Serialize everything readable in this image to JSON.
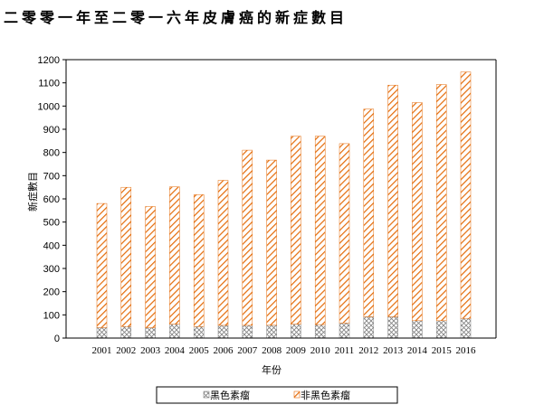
{
  "page": {
    "title": "二零零一年至二零一六年皮膚癌的新症數目"
  },
  "chart_data": {
    "type": "bar",
    "stacked": true,
    "title": "二零零一年至二零一六年皮膚癌的新症數目",
    "xlabel": "年份",
    "ylabel": "新症數目",
    "ylim": [
      0,
      1200
    ],
    "yticks": [
      0,
      100,
      200,
      300,
      400,
      500,
      600,
      700,
      800,
      900,
      1000,
      1100,
      1200
    ],
    "categories": [
      "2001",
      "2002",
      "2003",
      "2004",
      "2005",
      "2006",
      "2007",
      "2008",
      "2009",
      "2010",
      "2011",
      "2012",
      "2013",
      "2014",
      "2015",
      "2016"
    ],
    "series": [
      {
        "name": "黑色素瘤",
        "pattern": "crosshatch",
        "color": "#808080",
        "values": [
          45,
          50,
          45,
          60,
          50,
          55,
          55,
          55,
          60,
          58,
          65,
          92,
          92,
          75,
          75,
          85
        ]
      },
      {
        "name": "非黑色素瘤",
        "pattern": "diagonal-stripes",
        "color": "#E46C0A",
        "values": [
          535,
          600,
          522,
          592,
          568,
          625,
          755,
          712,
          810,
          812,
          773,
          895,
          998,
          940,
          1018,
          1062
        ]
      }
    ],
    "grid": false,
    "legend_position": "bottom"
  }
}
